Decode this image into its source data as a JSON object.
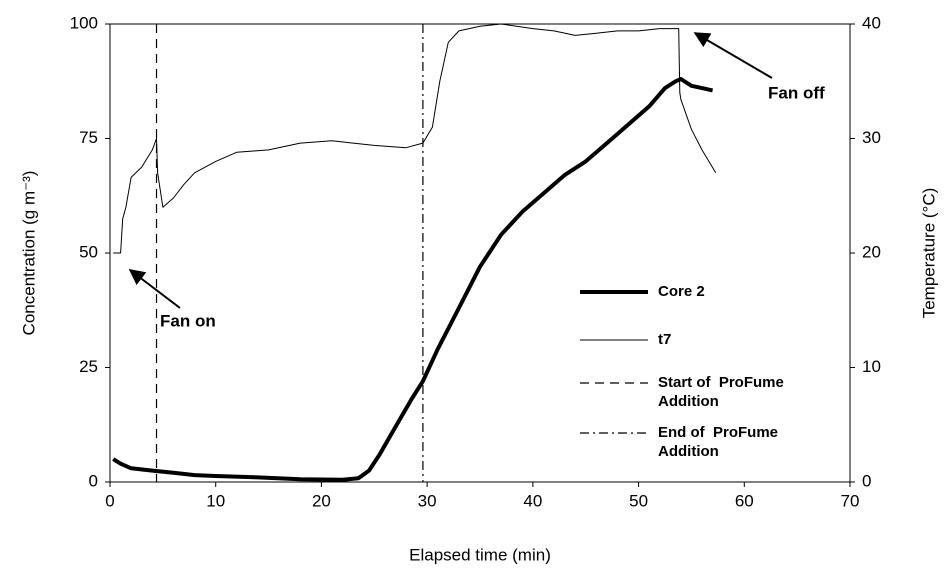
{
  "chart_data": {
    "type": "line",
    "xlabel": "Elapsed time (min)",
    "ylabel": "Concentration (g m⁻³)",
    "y2label": "Temperature (°C)",
    "xlim": [
      0,
      70
    ],
    "xticks": [
      0,
      10,
      20,
      30,
      40,
      50,
      60,
      70
    ],
    "ylim": [
      0,
      100
    ],
    "yticks": [
      0,
      25,
      50,
      75,
      100
    ],
    "y2lim": [
      0,
      40
    ],
    "y2ticks": [
      0,
      10,
      20,
      30,
      40
    ],
    "series": [
      {
        "name": "Core 2",
        "color": "#000000",
        "x": [
          0.3,
          1,
          2,
          4,
          6,
          8,
          10,
          14,
          18,
          22,
          23.5,
          24.5,
          25.5,
          27,
          28.5,
          29.6,
          31,
          33,
          35,
          37,
          39,
          41,
          43,
          45,
          47,
          49,
          51,
          52.5,
          53.5,
          54,
          55,
          56,
          57
        ],
        "values": [
          5,
          4,
          3,
          2.5,
          2,
          1.5,
          1.3,
          1,
          0.6,
          0.5,
          0.8,
          2.5,
          6,
          12,
          18,
          22,
          29,
          38,
          47,
          54,
          59,
          63,
          67,
          70,
          74,
          78,
          82,
          86,
          87.5,
          88,
          86.5,
          86,
          85.5
        ]
      },
      {
        "name": "t7",
        "color": "#000000",
        "axis": "y2",
        "x": [
          0.3,
          1,
          1.2,
          1.5,
          2,
          3,
          4,
          4.4,
          4.5,
          5,
          6,
          7,
          8,
          10,
          12,
          15,
          18,
          21,
          23,
          25,
          28,
          29.6,
          30.5,
          31.2,
          32,
          33,
          35,
          37,
          40,
          42,
          44,
          46,
          48,
          50,
          52,
          53.8,
          53.9,
          54,
          55,
          56,
          57.3
        ],
        "values": [
          20,
          20,
          23,
          24,
          26.6,
          27.5,
          29,
          30,
          27,
          24,
          24.8,
          26,
          27,
          28,
          28.8,
          29,
          29.6,
          29.8,
          29.6,
          29.4,
          29.2,
          29.6,
          31,
          35,
          38.4,
          39.4,
          39.8,
          40,
          39.6,
          39.4,
          39,
          39.2,
          39.4,
          39.4,
          39.6,
          39.6,
          34,
          33.4,
          30.8,
          29,
          27
        ]
      }
    ],
    "reference_lines": [
      {
        "name": "Start of  ProFume Addition",
        "x": 4.4,
        "dash": "dashed"
      },
      {
        "name": "End of  ProFume Addition",
        "x": 29.6,
        "dash": "dashdot"
      }
    ],
    "annotations": [
      "Fan on",
      "Fan off"
    ]
  }
}
